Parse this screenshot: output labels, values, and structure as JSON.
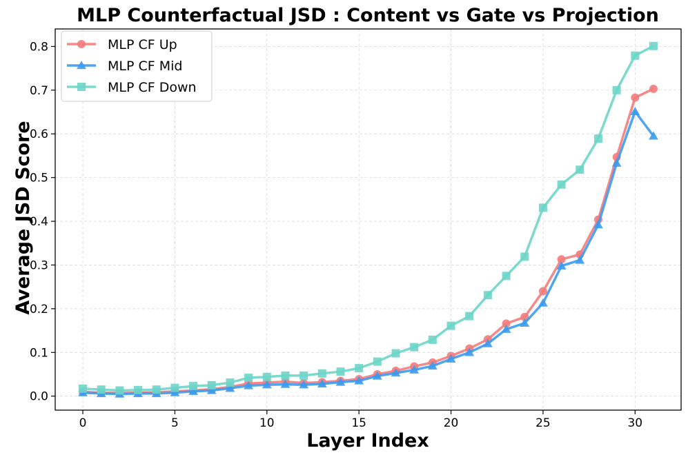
{
  "chart_data": {
    "type": "line",
    "title": "MLP Counterfactual JSD : Content vs Gate vs Projection",
    "xlabel": "Layer Index",
    "ylabel": "Average JSD Score",
    "xlim": [
      -1.5,
      32.5
    ],
    "ylim": [
      -0.032,
      0.84
    ],
    "xticks": [
      0,
      5,
      10,
      15,
      20,
      25,
      30
    ],
    "yticks": [
      0.0,
      0.1,
      0.2,
      0.3,
      0.4,
      0.5,
      0.6,
      0.7,
      0.8
    ],
    "grid": true,
    "legend_position": "upper-left",
    "x": [
      0,
      1,
      2,
      3,
      4,
      5,
      6,
      7,
      8,
      9,
      10,
      11,
      12,
      13,
      14,
      15,
      16,
      17,
      18,
      19,
      20,
      21,
      22,
      23,
      24,
      25,
      26,
      27,
      28,
      29,
      30,
      31
    ],
    "series": [
      {
        "name": "MLP CF Up",
        "color": "#f47c7c",
        "marker": "circle",
        "values": [
          0.01,
          0.008,
          0.007,
          0.008,
          0.009,
          0.011,
          0.013,
          0.016,
          0.021,
          0.029,
          0.031,
          0.033,
          0.03,
          0.032,
          0.035,
          0.039,
          0.05,
          0.058,
          0.068,
          0.077,
          0.092,
          0.109,
          0.13,
          0.166,
          0.181,
          0.24,
          0.313,
          0.324,
          0.404,
          0.547,
          0.683,
          0.703
        ]
      },
      {
        "name": "MLP CF Mid",
        "color": "#3b9bef",
        "marker": "triangle",
        "values": [
          0.008,
          0.006,
          0.005,
          0.006,
          0.006,
          0.008,
          0.011,
          0.013,
          0.018,
          0.024,
          0.026,
          0.027,
          0.026,
          0.028,
          0.032,
          0.035,
          0.046,
          0.053,
          0.06,
          0.069,
          0.085,
          0.1,
          0.12,
          0.153,
          0.167,
          0.213,
          0.298,
          0.311,
          0.392,
          0.533,
          0.651,
          0.595
        ]
      },
      {
        "name": "MLP CF Down",
        "color": "#6dd5c9",
        "marker": "square",
        "values": [
          0.017,
          0.015,
          0.013,
          0.014,
          0.015,
          0.019,
          0.023,
          0.025,
          0.031,
          0.042,
          0.044,
          0.047,
          0.047,
          0.052,
          0.056,
          0.064,
          0.079,
          0.098,
          0.112,
          0.129,
          0.161,
          0.183,
          0.231,
          0.275,
          0.319,
          0.431,
          0.484,
          0.518,
          0.589,
          0.7,
          0.779,
          0.801
        ]
      }
    ]
  }
}
